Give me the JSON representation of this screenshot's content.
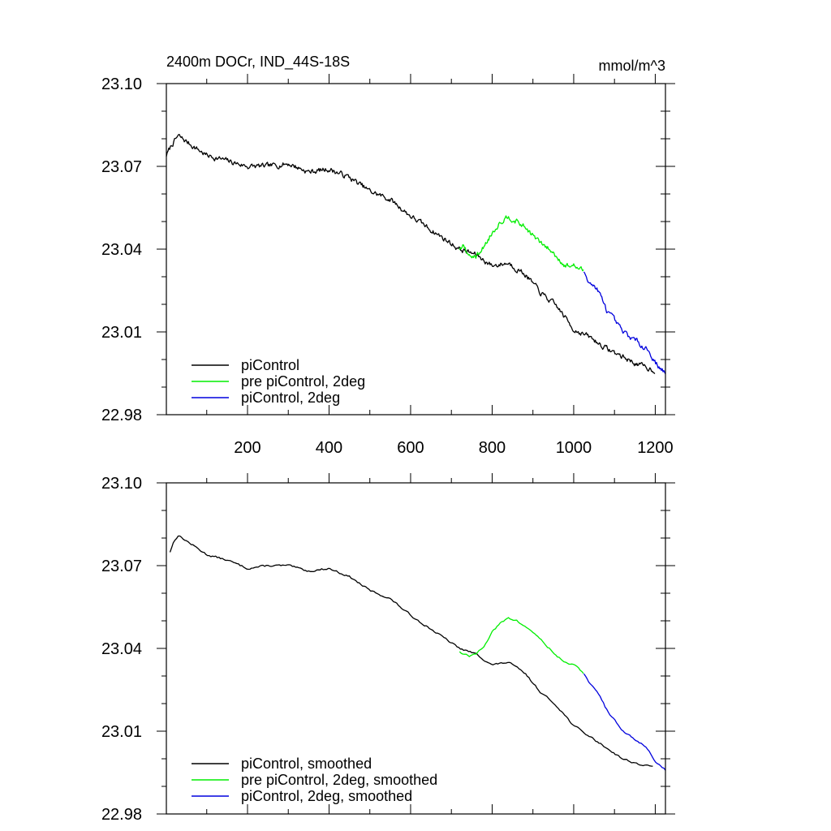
{
  "figure": {
    "title_left": "2400m DOCr, IND_44S-18S",
    "title_right": "mmol/m^3"
  },
  "colors": {
    "piControl": "#000000",
    "pre_piControl_2deg": "#00ee00",
    "piControl_2deg": "#0000dd"
  },
  "chart_data": [
    {
      "type": "line",
      "panel": "top",
      "title": "2400m DOCr, IND_44S-18S",
      "units": "mmol/m^3",
      "xlim": [
        1,
        1225
      ],
      "ylim": [
        22.98,
        23.1
      ],
      "x_ticks": [
        200,
        400,
        600,
        800,
        1000,
        1200
      ],
      "x_tick_labels": [
        "200",
        "400",
        "600",
        "800",
        "1000",
        "1200"
      ],
      "y_ticks": [
        22.98,
        23.01,
        23.04,
        23.07,
        23.1
      ],
      "y_tick_labels": [
        "22.98",
        "23.01",
        "23.04",
        "23.07",
        "23.10"
      ],
      "grid": false,
      "legend_position": "bottom-left",
      "noisy": true,
      "series": [
        {
          "name": "piControl",
          "color": "#000000",
          "x": [
            1,
            15,
            30,
            60,
            100,
            150,
            200,
            250,
            300,
            350,
            400,
            450,
            500,
            550,
            600,
            650,
            700,
            720,
            740,
            760,
            800,
            840,
            880,
            920,
            960,
            1000,
            1040,
            1080,
            1120,
            1160,
            1200
          ],
          "y": [
            23.074,
            23.078,
            23.081,
            23.078,
            23.074,
            23.072,
            23.07,
            23.07,
            23.071,
            23.068,
            23.069,
            23.066,
            23.061,
            23.058,
            23.052,
            23.047,
            23.042,
            23.04,
            23.039,
            23.038,
            23.034,
            23.035,
            23.031,
            23.024,
            23.019,
            23.011,
            23.008,
            23.004,
            23.001,
            22.998,
            22.996
          ]
        },
        {
          "name": "pre piControl, 2deg",
          "color": "#00ee00",
          "x": [
            720,
            730,
            740,
            760,
            780,
            800,
            820,
            840,
            860,
            880,
            900,
            920,
            940,
            960,
            980,
            1000,
            1025
          ],
          "y": [
            23.04,
            23.041,
            23.038,
            23.037,
            23.041,
            23.046,
            23.05,
            23.052,
            23.05,
            23.048,
            23.045,
            23.042,
            23.04,
            23.037,
            23.034,
            23.034,
            23.032
          ]
        },
        {
          "name": "piControl, 2deg",
          "color": "#0000dd",
          "x": [
            1025,
            1040,
            1060,
            1080,
            1100,
            1120,
            1140,
            1160,
            1180,
            1200,
            1225
          ],
          "y": [
            23.032,
            23.028,
            23.025,
            23.018,
            23.014,
            23.01,
            23.008,
            23.006,
            23.004,
            22.999,
            22.995
          ]
        }
      ]
    },
    {
      "type": "line",
      "panel": "bottom",
      "xlim": [
        1,
        1225
      ],
      "ylim": [
        22.98,
        23.1
      ],
      "x_ticks": [
        200,
        400,
        600,
        800,
        1000,
        1200
      ],
      "y_ticks": [
        22.98,
        23.01,
        23.04,
        23.07,
        23.1
      ],
      "y_tick_labels": [
        "22.98",
        "23.01",
        "23.04",
        "23.07",
        "23.10"
      ],
      "grid": false,
      "legend_position": "bottom-left",
      "noisy": false,
      "series": [
        {
          "name": "piControl, smoothed",
          "color": "#000000",
          "x": [
            10,
            20,
            30,
            60,
            100,
            150,
            200,
            250,
            300,
            350,
            400,
            450,
            500,
            550,
            600,
            650,
            700,
            720,
            740,
            760,
            800,
            840,
            880,
            920,
            960,
            1000,
            1040,
            1080,
            1120,
            1160,
            1195
          ],
          "y": [
            23.075,
            23.079,
            23.081,
            23.078,
            23.074,
            23.072,
            23.069,
            23.07,
            23.07,
            23.068,
            23.069,
            23.066,
            23.061,
            23.058,
            23.052,
            23.047,
            23.042,
            23.04,
            23.039,
            23.038,
            23.034,
            23.035,
            23.031,
            23.024,
            23.019,
            23.012,
            23.008,
            23.004,
            23.0,
            22.998,
            22.997
          ]
        },
        {
          "name": "pre piControl, 2deg, smoothed",
          "color": "#00ee00",
          "x": [
            720,
            730,
            745,
            760,
            780,
            800,
            820,
            840,
            860,
            880,
            900,
            920,
            940,
            960,
            980,
            1000,
            1025
          ],
          "y": [
            23.039,
            23.038,
            23.037,
            23.038,
            23.041,
            23.046,
            23.049,
            23.051,
            23.05,
            23.048,
            23.046,
            23.043,
            23.04,
            23.037,
            23.035,
            23.034,
            23.031
          ]
        },
        {
          "name": "piControl, 2deg, smoothed",
          "color": "#0000dd",
          "x": [
            1025,
            1040,
            1060,
            1080,
            1100,
            1120,
            1140,
            1160,
            1180,
            1200,
            1225
          ],
          "y": [
            23.031,
            23.027,
            23.024,
            23.018,
            23.014,
            23.01,
            23.008,
            23.006,
            23.004,
            22.999,
            22.996
          ]
        }
      ]
    }
  ]
}
